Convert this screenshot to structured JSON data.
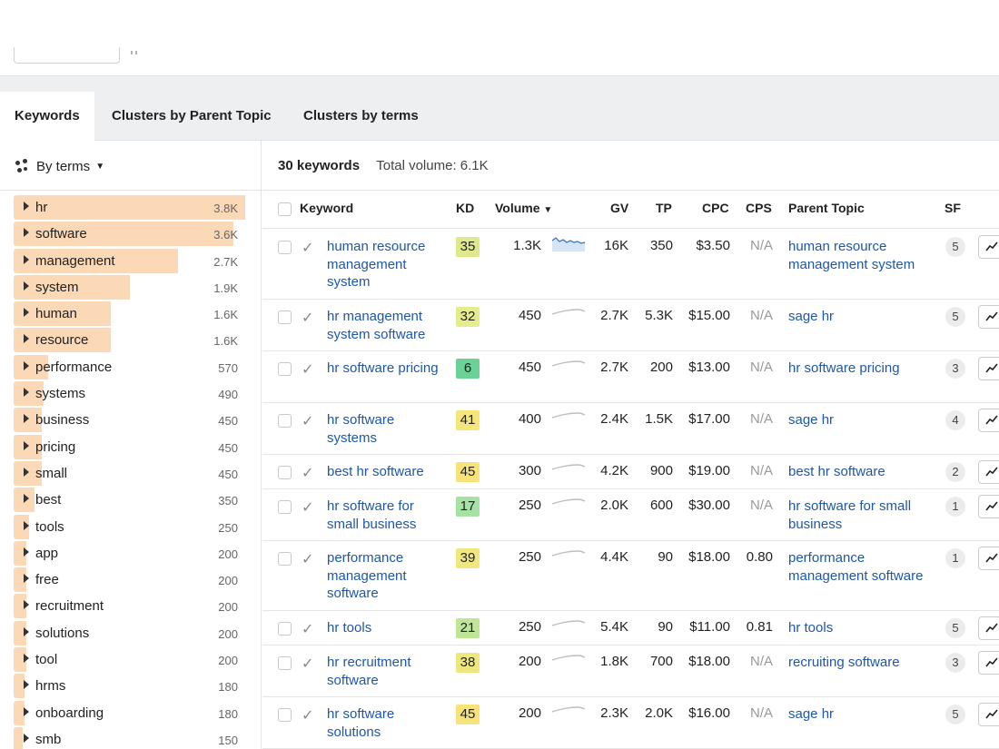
{
  "tabs": [
    {
      "label": "Keywords",
      "active": true
    },
    {
      "label": "Clusters by Parent Topic",
      "active": false
    },
    {
      "label": "Clusters by terms",
      "active": false
    }
  ],
  "sidebar": {
    "grouping_label": "By terms",
    "terms": [
      {
        "label": "hr",
        "count": "3.8K",
        "share": 1.0
      },
      {
        "label": "software",
        "count": "3.6K",
        "share": 0.95
      },
      {
        "label": "management",
        "count": "2.7K",
        "share": 0.71
      },
      {
        "label": "system",
        "count": "1.9K",
        "share": 0.5
      },
      {
        "label": "human",
        "count": "1.6K",
        "share": 0.42
      },
      {
        "label": "resource",
        "count": "1.6K",
        "share": 0.42
      },
      {
        "label": "performance",
        "count": "570",
        "share": 0.15
      },
      {
        "label": "systems",
        "count": "490",
        "share": 0.13
      },
      {
        "label": "business",
        "count": "450",
        "share": 0.12
      },
      {
        "label": "pricing",
        "count": "450",
        "share": 0.12
      },
      {
        "label": "small",
        "count": "450",
        "share": 0.12
      },
      {
        "label": "best",
        "count": "350",
        "share": 0.09
      },
      {
        "label": "tools",
        "count": "250",
        "share": 0.066
      },
      {
        "label": "app",
        "count": "200",
        "share": 0.053
      },
      {
        "label": "free",
        "count": "200",
        "share": 0.053
      },
      {
        "label": "recruitment",
        "count": "200",
        "share": 0.053
      },
      {
        "label": "solutions",
        "count": "200",
        "share": 0.053
      },
      {
        "label": "tool",
        "count": "200",
        "share": 0.053
      },
      {
        "label": "hrms",
        "count": "180",
        "share": 0.047
      },
      {
        "label": "onboarding",
        "count": "180",
        "share": 0.047
      },
      {
        "label": "smb",
        "count": "150",
        "share": 0.04
      }
    ]
  },
  "summary": {
    "keywords": "30 keywords",
    "total_volume": "Total volume: 6.1K"
  },
  "table": {
    "headers": {
      "keyword": "Keyword",
      "kd": "KD",
      "volume": "Volume",
      "gv": "GV",
      "tp": "TP",
      "cpc": "CPC",
      "cps": "CPS",
      "parent": "Parent Topic",
      "sf": "SF"
    },
    "rows": [
      {
        "keyword": "human resource management system",
        "kd": "35",
        "kd_color": "#dfe98a",
        "volume": "1.3K",
        "gv": "16K",
        "tp": "350",
        "cpc": "$3.50",
        "cps": "N/A",
        "parent": "human resource management system",
        "sf": "5",
        "spark": "area"
      },
      {
        "keyword": "hr management system software",
        "kd": "32",
        "kd_color": "#e4ec8c",
        "volume": "450",
        "gv": "2.7K",
        "tp": "5.3K",
        "cpc": "$15.00",
        "cps": "N/A",
        "parent": "sage hr",
        "sf": "5",
        "spark": "curve"
      },
      {
        "keyword": "hr software pricing",
        "kd": "6",
        "kd_color": "#69d294",
        "volume": "450",
        "gv": "2.7K",
        "tp": "200",
        "cpc": "$13.00",
        "cps": "N/A",
        "parent": "hr software pricing",
        "sf": "3",
        "spark": "curve"
      },
      {
        "keyword": "hr software systems",
        "kd": "41",
        "kd_color": "#f5e67a",
        "volume": "400",
        "gv": "2.4K",
        "tp": "1.5K",
        "cpc": "$17.00",
        "cps": "N/A",
        "parent": "sage hr",
        "sf": "4",
        "spark": "curve"
      },
      {
        "keyword": "best hr software",
        "kd": "45",
        "kd_color": "#f8e27a",
        "volume": "300",
        "gv": "4.2K",
        "tp": "900",
        "cpc": "$19.00",
        "cps": "N/A",
        "parent": "best hr software",
        "sf": "2",
        "spark": "curve"
      },
      {
        "keyword": "hr software for small business",
        "kd": "17",
        "kd_color": "#a6e2a3",
        "volume": "250",
        "gv": "2.0K",
        "tp": "600",
        "cpc": "$30.00",
        "cps": "N/A",
        "parent": "hr software for small business",
        "sf": "1",
        "spark": "curve"
      },
      {
        "keyword": "performance management software",
        "kd": "39",
        "kd_color": "#f1e77c",
        "volume": "250",
        "gv": "4.4K",
        "tp": "90",
        "cpc": "$18.00",
        "cps": "0.80",
        "parent": "performance management software",
        "sf": "1",
        "spark": "curve"
      },
      {
        "keyword": "hr tools",
        "kd": "21",
        "kd_color": "#bfe596",
        "volume": "250",
        "gv": "5.4K",
        "tp": "90",
        "cpc": "$11.00",
        "cps": "0.81",
        "parent": "hr tools",
        "sf": "5",
        "spark": "curve"
      },
      {
        "keyword": "hr recruitment software",
        "kd": "38",
        "kd_color": "#eee87c",
        "volume": "200",
        "gv": "1.8K",
        "tp": "700",
        "cpc": "$18.00",
        "cps": "N/A",
        "parent": "recruiting software",
        "sf": "3",
        "spark": "curve"
      },
      {
        "keyword": "hr software solutions",
        "kd": "45",
        "kd_color": "#f8e27a",
        "volume": "200",
        "gv": "2.3K",
        "tp": "2.0K",
        "cpc": "$16.00",
        "cps": "N/A",
        "parent": "sage hr",
        "sf": "5",
        "spark": "curve"
      }
    ]
  }
}
